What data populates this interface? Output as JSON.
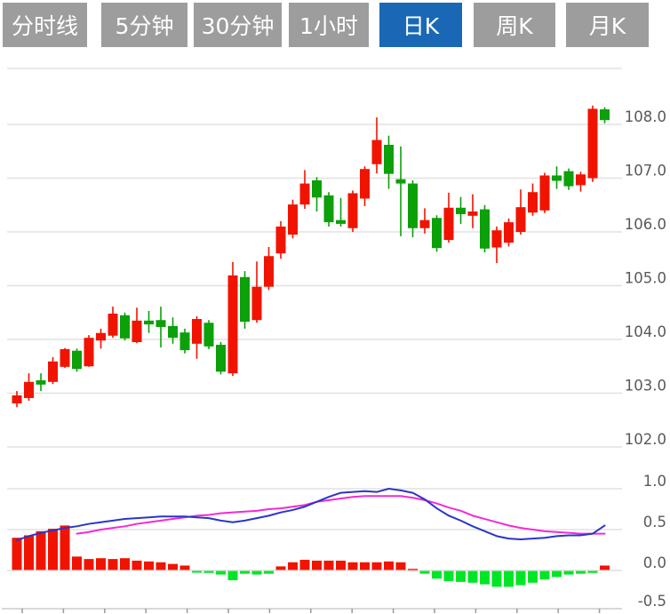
{
  "tabs": {
    "items": [
      {
        "label": "分时线",
        "active": false
      },
      {
        "label": "5分钟",
        "active": false
      },
      {
        "label": "30分钟",
        "active": false
      },
      {
        "label": "1小时",
        "active": false
      },
      {
        "label": "日K",
        "active": true
      },
      {
        "label": "周K",
        "active": false
      },
      {
        "label": "月K",
        "active": false
      }
    ]
  },
  "colors": {
    "tab_bg": "#9d9d9d",
    "tab_active_bg": "#1a68b5",
    "tab_text": "#ffffff",
    "grid": "#e2e2e2",
    "axis_line": "#cccccc",
    "axis_tick": "#999999",
    "axis_text": "#595959",
    "up": "#f01400",
    "down": "#0ca00a",
    "hist_up": "#f01400",
    "hist_down": "#00e626",
    "dif_line": "#2a35c8",
    "dea_line": "#f32ad4"
  },
  "chart_data": [
    {
      "type": "candlestick",
      "panel": "price",
      "title": "",
      "xlabel": "",
      "ylabel": "",
      "ylim": [
        101.6,
        109.1
      ],
      "grid": true,
      "axis_side": "right",
      "y_ticks": [
        {
          "value": 108,
          "label": "108.0"
        },
        {
          "value": 107,
          "label": "107.0"
        },
        {
          "value": 106,
          "label": "106.0"
        },
        {
          "value": 105,
          "label": "105.0"
        },
        {
          "value": 104,
          "label": "104.0"
        },
        {
          "value": 103,
          "label": "103.0"
        },
        {
          "value": 102,
          "label": "102.0"
        }
      ],
      "ohlc_order": [
        "open",
        "high",
        "low",
        "close"
      ],
      "up_color_meaning": "red = close above open (Chinese convention)",
      "candles": [
        [
          102.81,
          103.04,
          102.74,
          102.96
        ],
        [
          102.91,
          103.37,
          102.86,
          103.21
        ],
        [
          103.24,
          103.37,
          103.04,
          103.16
        ],
        [
          103.21,
          103.67,
          103.17,
          103.59
        ],
        [
          103.49,
          103.84,
          103.47,
          103.82
        ],
        [
          103.79,
          103.83,
          103.4,
          103.45
        ],
        [
          103.5,
          104.08,
          103.49,
          104.03
        ],
        [
          103.98,
          104.2,
          103.83,
          104.12
        ],
        [
          104.07,
          104.61,
          104.03,
          104.48
        ],
        [
          104.45,
          104.5,
          103.98,
          104.02
        ],
        [
          103.95,
          104.59,
          103.93,
          104.35
        ],
        [
          104.35,
          104.53,
          104.12,
          104.28
        ],
        [
          104.36,
          104.61,
          103.85,
          104.23
        ],
        [
          104.25,
          104.41,
          103.92,
          104.03
        ],
        [
          104.13,
          104.2,
          103.74,
          103.8
        ],
        [
          103.92,
          104.43,
          103.64,
          104.38
        ],
        [
          104.31,
          104.36,
          103.82,
          103.87
        ],
        [
          103.9,
          103.95,
          103.35,
          103.4
        ],
        [
          103.37,
          105.44,
          103.32,
          105.19
        ],
        [
          105.16,
          105.27,
          104.2,
          104.33
        ],
        [
          104.36,
          105.45,
          104.31,
          104.98
        ],
        [
          104.98,
          105.72,
          104.92,
          105.55
        ],
        [
          105.6,
          106.2,
          105.5,
          106.1
        ],
        [
          105.95,
          106.6,
          105.88,
          106.51
        ],
        [
          106.51,
          107.15,
          106.43,
          106.9
        ],
        [
          106.96,
          107.02,
          106.38,
          106.64
        ],
        [
          106.68,
          106.74,
          106.1,
          106.18
        ],
        [
          106.22,
          106.63,
          106.1,
          106.15
        ],
        [
          106.07,
          106.77,
          106.0,
          106.72
        ],
        [
          106.62,
          107.22,
          106.48,
          107.17
        ],
        [
          107.26,
          108.13,
          107.09,
          107.71
        ],
        [
          107.62,
          107.79,
          106.8,
          107.08
        ],
        [
          106.98,
          107.59,
          105.92,
          106.9
        ],
        [
          106.9,
          106.96,
          105.9,
          106.07
        ],
        [
          106.07,
          106.44,
          105.97,
          106.22
        ],
        [
          106.26,
          106.31,
          105.63,
          105.7
        ],
        [
          105.85,
          106.73,
          105.8,
          106.45
        ],
        [
          106.45,
          106.65,
          106.15,
          106.33
        ],
        [
          106.3,
          106.7,
          106.07,
          106.38
        ],
        [
          106.42,
          106.5,
          105.62,
          105.69
        ],
        [
          105.71,
          106.1,
          105.42,
          106.03
        ],
        [
          105.8,
          106.25,
          105.73,
          106.18
        ],
        [
          106.0,
          106.79,
          105.95,
          106.46
        ],
        [
          106.36,
          106.9,
          106.3,
          106.74
        ],
        [
          106.4,
          107.1,
          106.35,
          107.05
        ],
        [
          107.05,
          107.22,
          106.8,
          106.95
        ],
        [
          107.13,
          107.18,
          106.78,
          106.85
        ],
        [
          106.87,
          107.12,
          106.75,
          107.07
        ],
        [
          107.0,
          108.35,
          106.93,
          108.29
        ],
        [
          108.28,
          108.32,
          108.02,
          108.08
        ]
      ]
    },
    {
      "type": "bar",
      "panel": "macd",
      "title": "",
      "grid": true,
      "axis_side": "right",
      "ylim": [
        -0.55,
        1.05
      ],
      "y_ticks": [
        {
          "value": 1.0,
          "label": "1.0"
        },
        {
          "value": 0.5,
          "label": "0.5"
        },
        {
          "value": 0.0,
          "label": "0.0"
        },
        {
          "value": -0.5,
          "label": "-0.5"
        }
      ],
      "histogram": [
        0.4,
        0.43,
        0.48,
        0.51,
        0.55,
        0.17,
        0.14,
        0.15,
        0.14,
        0.15,
        0.12,
        0.11,
        0.1,
        0.08,
        0.06,
        -0.02,
        -0.03,
        -0.05,
        -0.12,
        -0.04,
        -0.05,
        -0.04,
        0.05,
        0.1,
        0.13,
        0.12,
        0.12,
        0.12,
        0.1,
        0.1,
        0.1,
        0.11,
        0.1,
        0.02,
        -0.04,
        -0.1,
        -0.13,
        -0.14,
        -0.15,
        -0.17,
        -0.2,
        -0.2,
        -0.18,
        -0.15,
        -0.11,
        -0.08,
        -0.05,
        -0.04,
        -0.03,
        0.06
      ],
      "series": [
        {
          "name": "DIF",
          "color_key": "dif_line",
          "values": [
            0.37,
            0.42,
            0.46,
            0.49,
            0.52,
            0.54,
            0.57,
            0.59,
            0.61,
            0.63,
            0.64,
            0.65,
            0.66,
            0.66,
            0.66,
            0.65,
            0.64,
            0.61,
            0.59,
            0.61,
            0.64,
            0.67,
            0.71,
            0.74,
            0.78,
            0.84,
            0.9,
            0.95,
            0.96,
            0.97,
            0.96,
            1.0,
            0.98,
            0.95,
            0.87,
            0.76,
            0.67,
            0.61,
            0.54,
            0.48,
            0.42,
            0.39,
            0.38,
            0.39,
            0.4,
            0.42,
            0.43,
            0.43,
            0.45,
            0.55
          ]
        },
        {
          "name": "DEA",
          "color_key": "dea_line",
          "values": [
            null,
            null,
            null,
            null,
            null,
            0.45,
            0.47,
            0.5,
            0.52,
            0.54,
            0.57,
            0.59,
            0.61,
            0.63,
            0.65,
            0.67,
            0.68,
            0.7,
            0.71,
            0.72,
            0.73,
            0.75,
            0.76,
            0.78,
            0.8,
            0.84,
            0.86,
            0.88,
            0.9,
            0.91,
            0.91,
            0.91,
            0.91,
            0.89,
            0.86,
            0.82,
            0.77,
            0.73,
            0.67,
            0.63,
            0.59,
            0.55,
            0.52,
            0.5,
            0.48,
            0.47,
            0.46,
            0.45,
            0.45,
            0.45
          ]
        }
      ],
      "x_axis": {
        "tick_count": 15,
        "labels_visible": false
      }
    }
  ]
}
